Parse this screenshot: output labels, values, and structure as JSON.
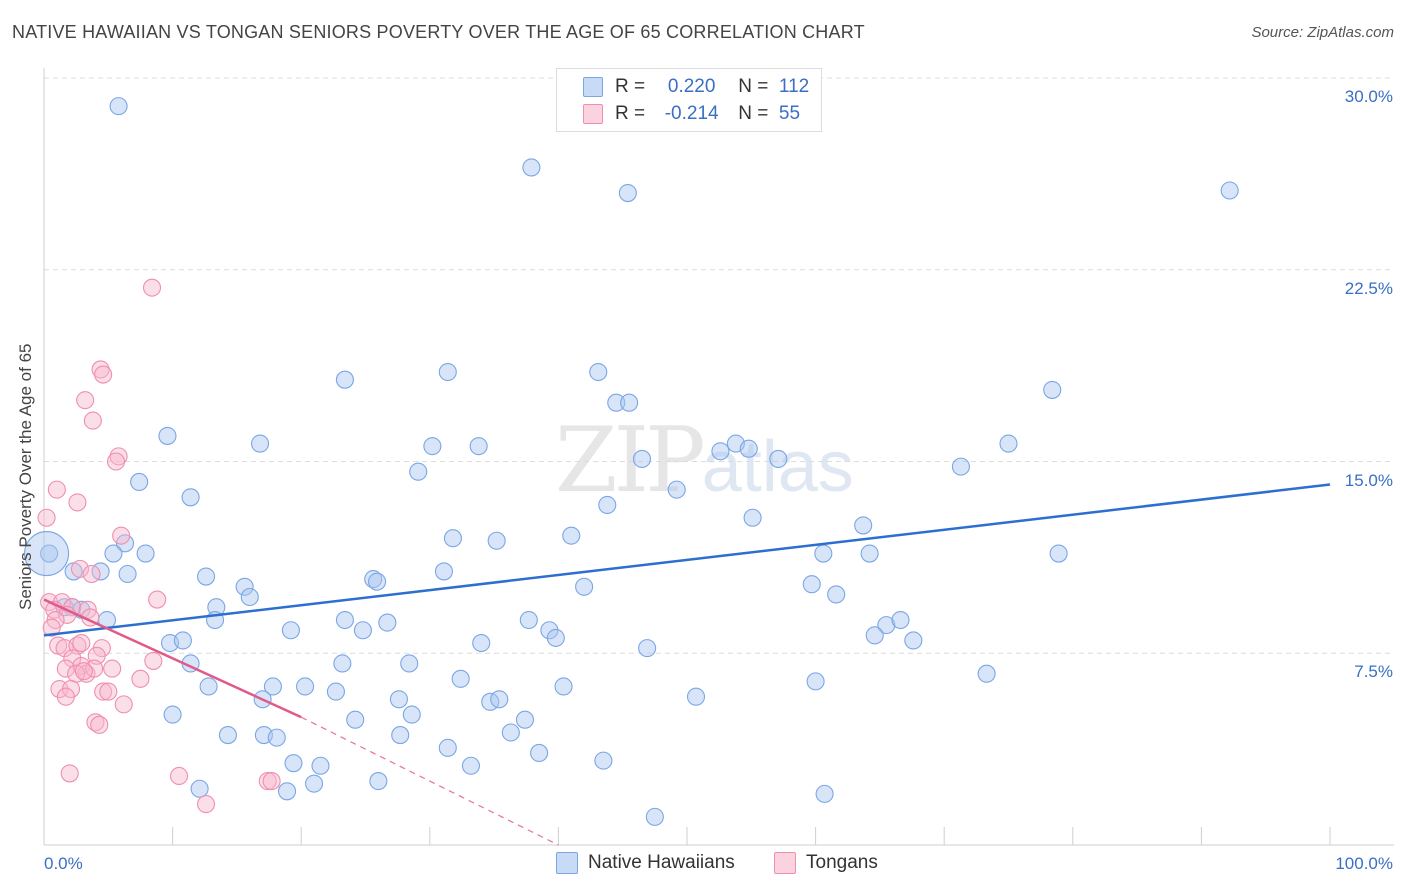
{
  "title": "NATIVE HAWAIIAN VS TONGAN SENIORS POVERTY OVER THE AGE OF 65 CORRELATION CHART",
  "source": "Source: ZipAtlas.com",
  "watermark": {
    "zip": "ZIP",
    "atlas": "atlas"
  },
  "legend": {
    "rows": [
      {
        "r_label": "R =",
        "r_value": "0.220",
        "n_label": "N =",
        "n_value": "112",
        "color": "#a9c6ef"
      },
      {
        "r_label": "R =",
        "r_value": "-0.214",
        "n_label": "N =",
        "n_value": "55",
        "color": "#f7b7cb"
      }
    ]
  },
  "bottom_legend": [
    {
      "label": "Native Hawaiians",
      "color": "#a9c6ef"
    },
    {
      "label": "Tongans",
      "color": "#f7b7cb"
    }
  ],
  "chart_data": {
    "type": "scatter",
    "title": "NATIVE HAWAIIAN VS TONGAN SENIORS POVERTY OVER THE AGE OF 65 CORRELATION CHART",
    "xlabel": "",
    "ylabel": "Seniors Poverty Over the Age of 65",
    "xlim": [
      0,
      100
    ],
    "ylim": [
      0,
      30
    ],
    "x_tick_labels": [
      "0.0%",
      "100.0%"
    ],
    "y_ticks": [
      7.5,
      15.0,
      22.5,
      30.0
    ],
    "y_tick_labels": [
      "7.5%",
      "15.0%",
      "22.5%",
      "30.0%"
    ],
    "grid": true,
    "legend_position": "top-center",
    "series": [
      {
        "name": "Native Hawaiians",
        "color": "#7aa6e6",
        "trend": {
          "x0": 0,
          "y0": 8.2,
          "x1": 100,
          "y1": 14.1,
          "color": "#2d6fcf"
        },
        "points": [
          [
            5.8,
            28.9
          ],
          [
            37.9,
            26.5
          ],
          [
            45.4,
            25.5
          ],
          [
            92.2,
            25.6
          ],
          [
            23.4,
            18.2
          ],
          [
            31.4,
            18.5
          ],
          [
            43.1,
            18.5
          ],
          [
            44.5,
            17.3
          ],
          [
            45.5,
            17.3
          ],
          [
            78.4,
            17.8
          ],
          [
            9.6,
            16.0
          ],
          [
            16.8,
            15.7
          ],
          [
            30.2,
            15.6
          ],
          [
            33.8,
            15.6
          ],
          [
            52.6,
            15.4
          ],
          [
            53.8,
            15.7
          ],
          [
            54.8,
            15.5
          ],
          [
            57.1,
            15.1
          ],
          [
            46.5,
            15.1
          ],
          [
            71.3,
            14.8
          ],
          [
            75.0,
            15.7
          ],
          [
            29.1,
            14.6
          ],
          [
            7.4,
            14.2
          ],
          [
            11.4,
            13.6
          ],
          [
            49.2,
            13.9
          ],
          [
            43.8,
            13.3
          ],
          [
            63.7,
            12.5
          ],
          [
            31.8,
            12.0
          ],
          [
            35.2,
            11.9
          ],
          [
            6.3,
            11.8
          ],
          [
            0.4,
            11.4
          ],
          [
            5.4,
            11.4
          ],
          [
            7.9,
            11.4
          ],
          [
            60.6,
            11.4
          ],
          [
            64.2,
            11.4
          ],
          [
            78.9,
            11.4
          ],
          [
            2.3,
            10.7
          ],
          [
            4.4,
            10.7
          ],
          [
            6.5,
            10.6
          ],
          [
            12.6,
            10.5
          ],
          [
            25.6,
            10.4
          ],
          [
            31.1,
            10.7
          ],
          [
            15.6,
            10.1
          ],
          [
            25.9,
            10.3
          ],
          [
            42.0,
            10.1
          ],
          [
            59.7,
            10.2
          ],
          [
            16.0,
            9.7
          ],
          [
            61.6,
            9.8
          ],
          [
            1.6,
            9.3
          ],
          [
            2.2,
            9.3
          ],
          [
            2.9,
            9.2
          ],
          [
            13.4,
            9.3
          ],
          [
            4.9,
            8.8
          ],
          [
            13.3,
            8.8
          ],
          [
            23.4,
            8.8
          ],
          [
            26.7,
            8.7
          ],
          [
            37.7,
            8.8
          ],
          [
            65.5,
            8.6
          ],
          [
            66.6,
            8.8
          ],
          [
            19.2,
            8.4
          ],
          [
            24.8,
            8.4
          ],
          [
            39.3,
            8.4
          ],
          [
            39.8,
            8.1
          ],
          [
            9.8,
            7.9
          ],
          [
            10.8,
            8.0
          ],
          [
            34.0,
            7.9
          ],
          [
            46.9,
            7.7
          ],
          [
            64.6,
            8.2
          ],
          [
            67.6,
            8.0
          ],
          [
            11.4,
            7.1
          ],
          [
            23.2,
            7.1
          ],
          [
            28.4,
            7.1
          ],
          [
            12.8,
            6.2
          ],
          [
            17.8,
            6.2
          ],
          [
            20.3,
            6.2
          ],
          [
            22.7,
            6.0
          ],
          [
            32.4,
            6.5
          ],
          [
            40.4,
            6.2
          ],
          [
            60.0,
            6.4
          ],
          [
            73.3,
            6.7
          ],
          [
            17.0,
            5.7
          ],
          [
            27.6,
            5.7
          ],
          [
            34.7,
            5.6
          ],
          [
            50.7,
            5.8
          ],
          [
            10.0,
            5.1
          ],
          [
            24.2,
            4.9
          ],
          [
            28.6,
            5.1
          ],
          [
            35.4,
            5.7
          ],
          [
            37.4,
            4.9
          ],
          [
            36.3,
            4.4
          ],
          [
            14.3,
            4.3
          ],
          [
            17.1,
            4.3
          ],
          [
            18.1,
            4.2
          ],
          [
            27.7,
            4.3
          ],
          [
            31.4,
            3.8
          ],
          [
            38.5,
            3.6
          ],
          [
            19.4,
            3.2
          ],
          [
            21.5,
            3.1
          ],
          [
            33.2,
            3.1
          ],
          [
            43.5,
            3.3
          ],
          [
            12.1,
            2.2
          ],
          [
            18.9,
            2.1
          ],
          [
            21.0,
            2.4
          ],
          [
            26.0,
            2.5
          ],
          [
            60.7,
            2.0
          ],
          [
            47.5,
            1.1
          ],
          [
            41.0,
            12.1
          ],
          [
            55.1,
            12.8
          ]
        ],
        "highlight": {
          "x": 0.2,
          "y": 11.4,
          "note": "large circle at left edge"
        }
      },
      {
        "name": "Tongans",
        "color": "#f08eb0",
        "trend": {
          "x0": 0,
          "y0": 9.6,
          "x1": 20,
          "y1": 5.0,
          "dashed_to_x": 40,
          "dashed_to_y": 0.0,
          "color": "#e05a8a"
        },
        "points": [
          [
            8.4,
            21.8
          ],
          [
            4.4,
            18.6
          ],
          [
            4.6,
            18.4
          ],
          [
            3.2,
            17.4
          ],
          [
            3.8,
            16.6
          ],
          [
            5.8,
            15.2
          ],
          [
            5.6,
            15.0
          ],
          [
            1.0,
            13.9
          ],
          [
            2.6,
            13.4
          ],
          [
            0.2,
            12.8
          ],
          [
            6.0,
            12.1
          ],
          [
            2.8,
            10.8
          ],
          [
            3.7,
            10.6
          ],
          [
            0.4,
            9.5
          ],
          [
            1.4,
            9.5
          ],
          [
            2.2,
            9.3
          ],
          [
            8.8,
            9.6
          ],
          [
            0.8,
            9.2
          ],
          [
            1.8,
            9.0
          ],
          [
            3.4,
            9.2
          ],
          [
            0.9,
            8.8
          ],
          [
            3.6,
            8.9
          ],
          [
            0.6,
            8.5
          ],
          [
            1.1,
            7.8
          ],
          [
            1.6,
            7.7
          ],
          [
            2.6,
            7.8
          ],
          [
            2.9,
            7.9
          ],
          [
            4.5,
            7.7
          ],
          [
            4.1,
            7.4
          ],
          [
            2.2,
            7.3
          ],
          [
            8.5,
            7.2
          ],
          [
            2.9,
            7.0
          ],
          [
            1.7,
            6.9
          ],
          [
            3.3,
            6.7
          ],
          [
            2.5,
            6.7
          ],
          [
            3.9,
            6.9
          ],
          [
            5.3,
            6.9
          ],
          [
            3.1,
            6.8
          ],
          [
            7.5,
            6.5
          ],
          [
            1.2,
            6.1
          ],
          [
            2.1,
            6.1
          ],
          [
            4.6,
            6.0
          ],
          [
            5.0,
            6.0
          ],
          [
            1.7,
            5.8
          ],
          [
            6.2,
            5.5
          ],
          [
            4.0,
            4.8
          ],
          [
            4.3,
            4.7
          ],
          [
            2.0,
            2.8
          ],
          [
            10.5,
            2.7
          ],
          [
            17.4,
            2.5
          ],
          [
            17.7,
            2.5
          ],
          [
            12.6,
            1.6
          ]
        ]
      }
    ]
  }
}
